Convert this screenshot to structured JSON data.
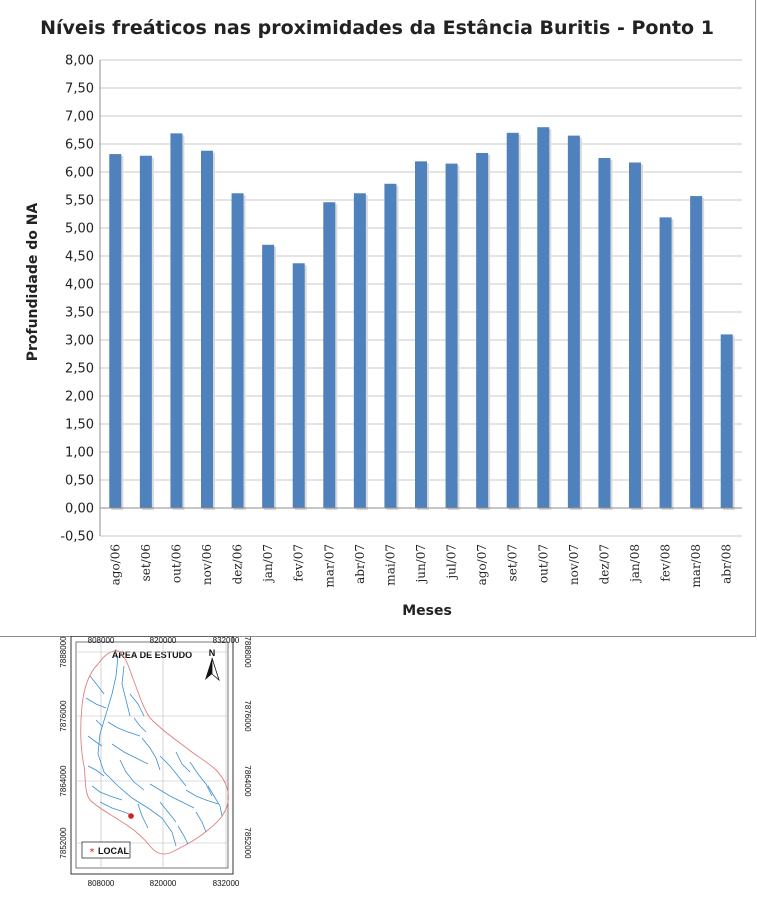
{
  "chart_data": {
    "type": "bar",
    "title": "Níveis freáticos nas proximidades da Estância Buritis - Ponto 1",
    "xlabel": "Meses",
    "ylabel": "Profundidade do NA",
    "ylim": [
      -0.5,
      8.0
    ],
    "y_ticks": [
      "8,00",
      "7,50",
      "7,00",
      "6,50",
      "6,00",
      "5,50",
      "5,00",
      "4,50",
      "4,00",
      "3,50",
      "3,00",
      "2,50",
      "2,00",
      "1,50",
      "1,00",
      "0,50",
      "0,00",
      "-0,50"
    ],
    "grid": true,
    "legend": "none",
    "bar_color": "#4f81bd",
    "categories": [
      "ago/06",
      "set/06",
      "out/06",
      "nov/06",
      "dez/06",
      "jan/07",
      "fev/07",
      "mar/07",
      "abr/07",
      "mai/07",
      "jun/07",
      "jul/07",
      "ago/07",
      "set/07",
      "out/07",
      "nov/07",
      "dez/07",
      "jan/08",
      "fev/08",
      "mar/08",
      "abr/08"
    ],
    "values": [
      6.32,
      6.29,
      6.69,
      6.38,
      5.62,
      4.7,
      4.37,
      5.46,
      5.62,
      5.79,
      6.19,
      6.15,
      6.34,
      6.7,
      6.8,
      6.65,
      6.25,
      6.17,
      5.19,
      5.57,
      3.1
    ]
  },
  "map": {
    "title": "ÁREA DE ESTUDO",
    "north_label": "N",
    "x_ticks": [
      "808000",
      "820000",
      "832000"
    ],
    "y_ticks": [
      "7888000",
      "7876000",
      "7864000",
      "7852000"
    ],
    "legend_label": "LOCAL",
    "legend_marker": "*",
    "marker_color": "#d42020",
    "boundary_color": "#e08080",
    "river_color": "#3a8fd0"
  }
}
